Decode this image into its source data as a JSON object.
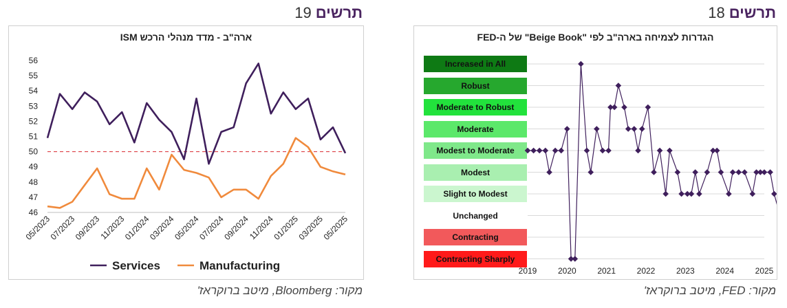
{
  "left": {
    "heading_label": "תרשים",
    "heading_number": "19",
    "source": "מקור: Bloomberg, מיטב ברוקראז'",
    "chart_data": {
      "type": "line",
      "title": "ארה\"ב - מדד מנהלי הרכש ISM",
      "xlabel": "",
      "ylabel": "",
      "ylim": [
        46,
        56
      ],
      "yticks": [
        46,
        47,
        48,
        49,
        50,
        51,
        52,
        53,
        54,
        55,
        56
      ],
      "x": [
        "05/2023",
        "06/2023",
        "07/2023",
        "08/2023",
        "09/2023",
        "10/2023",
        "11/2023",
        "12/2023",
        "01/2024",
        "02/2024",
        "03/2024",
        "04/2024",
        "05/2024",
        "06/2024",
        "07/2024",
        "08/2024",
        "09/2024",
        "10/2024",
        "11/2024",
        "12/2024",
        "01/2025",
        "02/2025",
        "03/2025",
        "04/2025",
        "05/2025"
      ],
      "xtick_labels": [
        "05/2023",
        "07/2023",
        "09/2023",
        "11/2023",
        "01/2024",
        "03/2024",
        "05/2024",
        "07/2024",
        "09/2024",
        "11/2024",
        "01/2025",
        "03/2025",
        "05/2025"
      ],
      "reference_line": 50,
      "legend_position": "bottom",
      "grid": false,
      "series": [
        {
          "name": "Services",
          "color": "#3f1f5c",
          "values": [
            50.9,
            53.8,
            52.8,
            53.9,
            53.3,
            51.8,
            52.6,
            50.6,
            53.2,
            52.1,
            51.3,
            49.5,
            53.5,
            49.2,
            51.3,
            51.6,
            54.5,
            55.8,
            52.5,
            53.9,
            52.8,
            53.5,
            50.8,
            51.6,
            49.9
          ]
        },
        {
          "name": "Manufacturing",
          "color": "#f08a3c",
          "values": [
            46.4,
            46.3,
            46.7,
            47.8,
            48.9,
            47.2,
            46.9,
            46.9,
            48.9,
            47.5,
            49.8,
            48.8,
            48.6,
            48.3,
            47.0,
            47.5,
            47.5,
            46.9,
            48.4,
            49.2,
            50.9,
            50.3,
            49.0,
            48.7,
            48.5
          ]
        }
      ]
    }
  },
  "right": {
    "heading_label": "תרשים",
    "heading_number": "18",
    "source": "מקור: FED, מיטב ברוקראז'",
    "chart_data": {
      "type": "line",
      "title": "הגדרות לצמיחה בארה\"ב לפי \"Beige Book\" של ה-FED",
      "xlabel": "",
      "ylabel": "",
      "xlim": [
        2019,
        2025
      ],
      "xticks": [
        "2019",
        "2020",
        "2021",
        "2022",
        "2023",
        "2024",
        "2025"
      ],
      "grid": true,
      "categories": [
        "Increased in All",
        "Robust",
        "Moderate to Robust",
        "Moderate",
        "Modest to Moderate",
        "Modest",
        "Slight to Modest",
        "Unchanged",
        "Contracting",
        "Contracting Sharply"
      ],
      "category_colors": [
        "#0e7a14",
        "#26a82e",
        "#22e23c",
        "#5be86a",
        "#7fe88a",
        "#a9efb0",
        "#cbf6cf",
        "#ffffff",
        "#f2595b",
        "#ff1a1a"
      ],
      "series": [
        {
          "name": "",
          "color": "#3f1f5c",
          "x": [
            2019.0,
            2019.15,
            2019.3,
            2019.45,
            2019.55,
            2019.7,
            2019.85,
            2020.0,
            2020.1,
            2020.2,
            2020.35,
            2020.5,
            2020.6,
            2020.75,
            2020.9,
            2021.05,
            2021.1,
            2021.2,
            2021.3,
            2021.45,
            2021.55,
            2021.7,
            2021.8,
            2021.9,
            2022.05,
            2022.2,
            2022.35,
            2022.5,
            2022.6,
            2022.8,
            2022.9,
            2023.05,
            2023.15,
            2023.25,
            2023.35,
            2023.55,
            2023.7,
            2023.8,
            2023.9,
            2024.1,
            2024.2,
            2024.35,
            2024.5,
            2024.7,
            2024.8,
            2024.9,
            2025.0,
            2025.15,
            2025.25,
            2025.4
          ],
          "y": [
            5.0,
            5.0,
            5.0,
            5.0,
            4.0,
            5.0,
            5.0,
            6.0,
            0.0,
            0.0,
            9.0,
            5.0,
            4.0,
            6.0,
            5.0,
            5.0,
            7.0,
            7.0,
            8.0,
            7.0,
            6.0,
            6.0,
            5.0,
            6.0,
            7.0,
            4.0,
            5.0,
            3.0,
            5.0,
            4.0,
            3.0,
            3.0,
            3.0,
            4.0,
            3.0,
            4.0,
            5.0,
            5.0,
            4.0,
            3.0,
            4.0,
            4.0,
            4.0,
            3.0,
            4.0,
            4.0,
            4.0,
            4.0,
            3.0,
            2.0
          ]
        }
      ]
    }
  }
}
